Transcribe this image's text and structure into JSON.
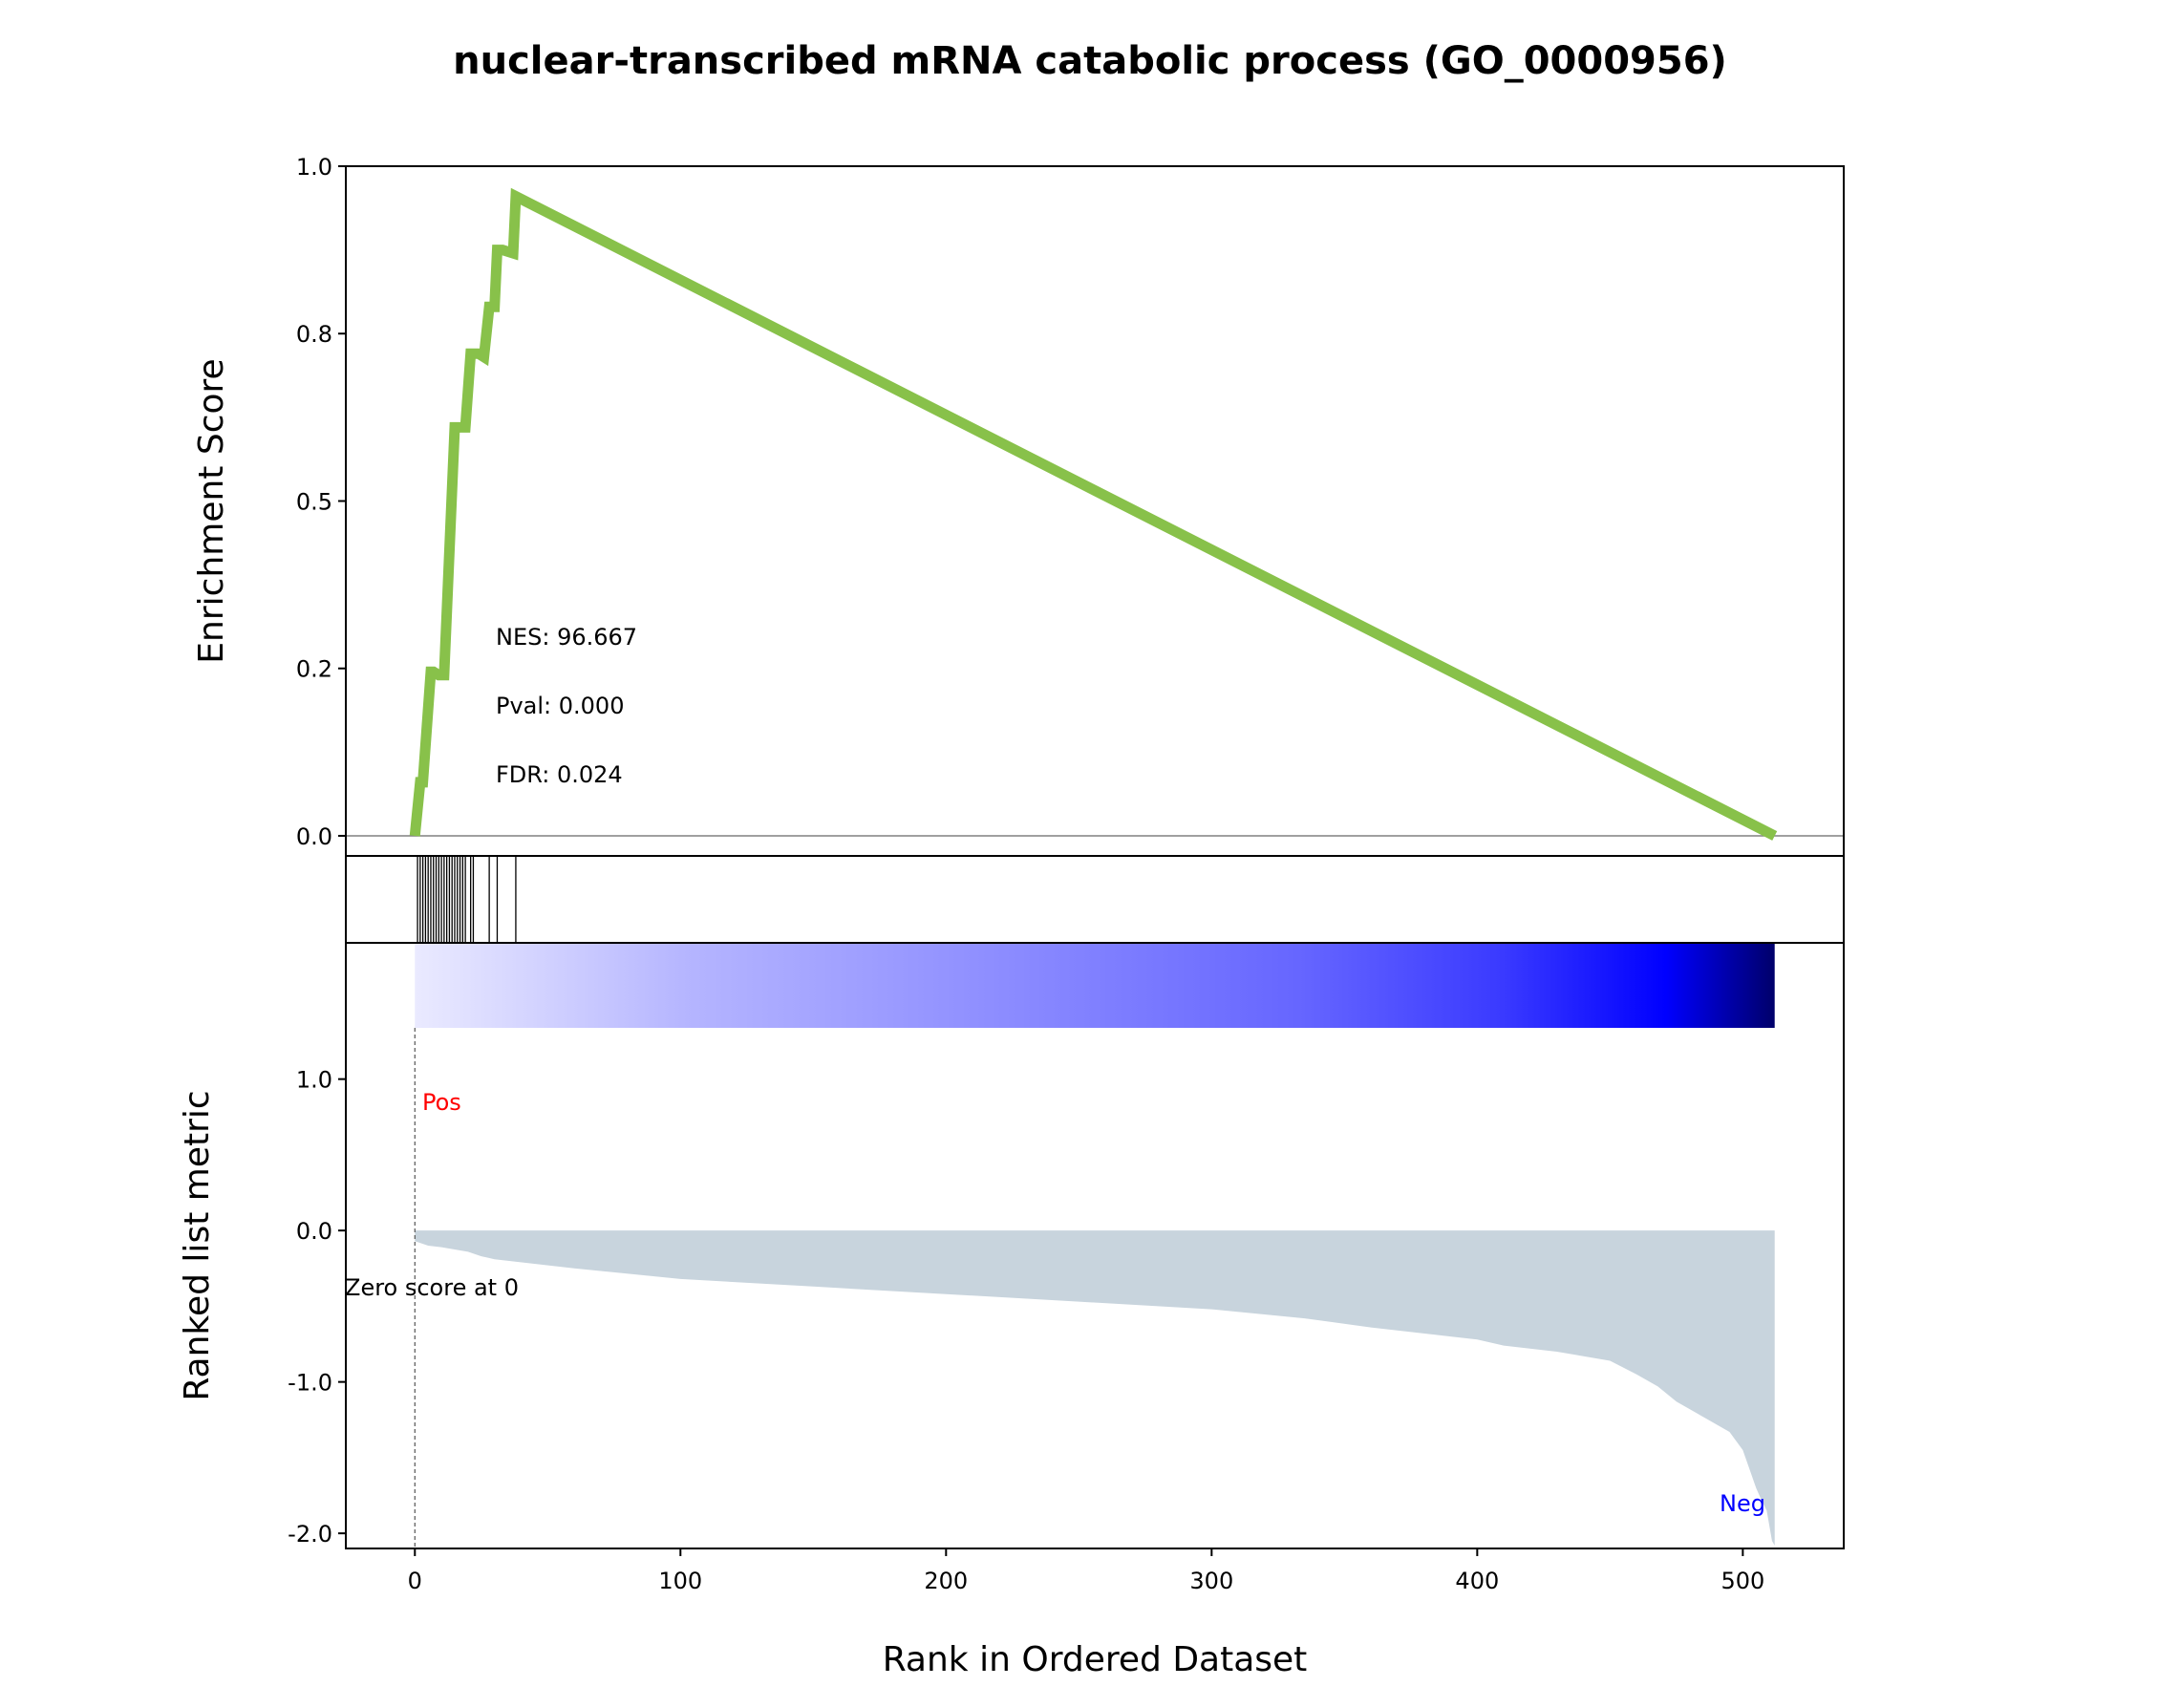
{
  "chart_data": {
    "type": "line",
    "title": "nuclear-transcribed mRNA catabolic process (GO_0000956)",
    "xlabel": "Rank in Ordered Dataset",
    "xlim": [
      -26,
      538
    ],
    "x_ticks": [
      0,
      100,
      200,
      300,
      400,
      500
    ],
    "x_tick_labels": [
      "0",
      "100",
      "200",
      "300",
      "400",
      "500"
    ],
    "enrichment": {
      "ylabel": "Enrichment Score",
      "ylim": [
        -0.03,
        1.0
      ],
      "y_ticks": [
        0.0,
        0.25,
        0.5,
        0.75,
        1.0
      ],
      "y_tick_labels": [
        "0.0",
        "0.2",
        "0.5",
        "0.8",
        "1.0"
      ],
      "line_color": "#88c14a",
      "zero_line_color": "#808080",
      "x": [
        0,
        2,
        3,
        6,
        7,
        9,
        11,
        15,
        16,
        18,
        19,
        21,
        24,
        26,
        28,
        30,
        31,
        33,
        37,
        38,
        512
      ],
      "y": [
        0.0,
        0.08,
        0.08,
        0.245,
        0.245,
        0.24,
        0.24,
        0.61,
        0.61,
        0.61,
        0.61,
        0.72,
        0.72,
        0.715,
        0.79,
        0.79,
        0.875,
        0.875,
        0.87,
        0.955,
        0.0
      ],
      "annotations": [
        "NES: 96.667",
        "Pval: 0.000",
        "FDR: 0.024"
      ]
    },
    "hits": {
      "positions": [
        1,
        2,
        3,
        4,
        5,
        6,
        7,
        8,
        9,
        10,
        11,
        12,
        13,
        14,
        15,
        16,
        17,
        18,
        19,
        21,
        22,
        28,
        31,
        38
      ]
    },
    "ranked_metric": {
      "ylabel": "Ranked list metric",
      "ylim": [
        -2.1,
        1.9
      ],
      "y_ticks": [
        1.0,
        0.0,
        -1.0,
        -2.0
      ],
      "y_tick_labels": [
        "1.0",
        "0.0",
        "-1.0",
        "-2.0"
      ],
      "fill_color": "#c8d4dd",
      "n": 513,
      "rank": [
        0,
        5,
        10,
        20,
        25,
        30,
        60,
        100,
        150,
        200,
        250,
        300,
        335,
        360,
        390,
        400,
        410,
        430,
        450,
        460,
        468,
        475,
        485,
        495,
        500,
        503,
        505,
        507,
        509,
        510,
        511,
        512
      ],
      "metric": [
        -0.07,
        -0.1,
        -0.11,
        -0.14,
        -0.17,
        -0.19,
        -0.25,
        -0.32,
        -0.37,
        -0.42,
        -0.47,
        -0.52,
        -0.58,
        -0.64,
        -0.7,
        -0.72,
        -0.76,
        -0.8,
        -0.86,
        -0.95,
        -1.03,
        -1.13,
        -1.23,
        -1.33,
        -1.45,
        -1.6,
        -1.7,
        -1.78,
        -1.85,
        -1.95,
        -2.05,
        -2.08
      ],
      "heatmap_colors": [
        "#eaeaff",
        "#d0d0ff",
        "#b5b5ff",
        "#9b9bff",
        "#8080ff",
        "#6666ff",
        "#3a3aff",
        "#0000ff",
        "#00006a"
      ],
      "heatmap_stops": [
        0.0,
        0.1,
        0.2,
        0.35,
        0.5,
        0.65,
        0.8,
        0.92,
        1.0
      ],
      "pos_label": "Pos",
      "neg_label": "Neg",
      "pos_color": "#ff0000",
      "neg_color": "#0000ff",
      "zero_score_text": "Zero score at 0"
    }
  }
}
